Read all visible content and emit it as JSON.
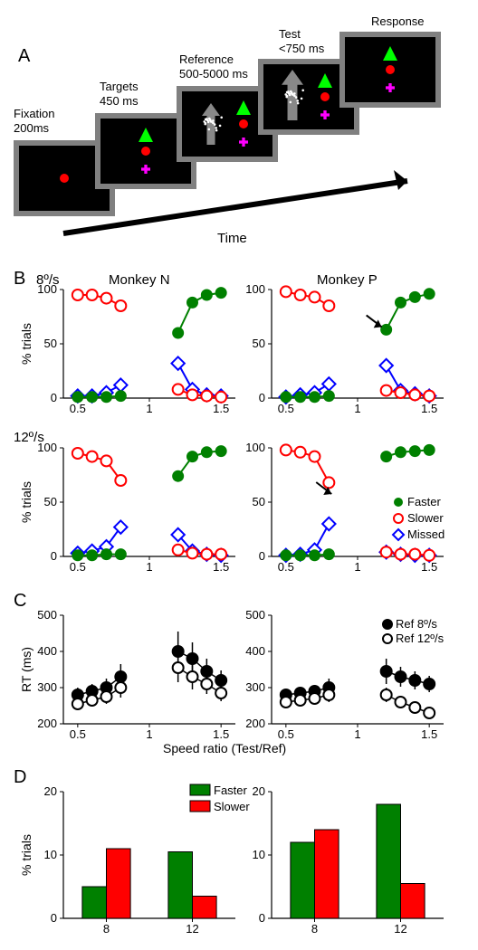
{
  "panelA": {
    "label": "A",
    "timeArrowLabel": "Time",
    "stages": [
      {
        "title": "Fixation",
        "subtitle": "200ms"
      },
      {
        "title": "Targets",
        "subtitle": "450 ms"
      },
      {
        "title": "Reference",
        "subtitle": "500-5000 ms"
      },
      {
        "title": "Test",
        "subtitle": "<750 ms"
      },
      {
        "title": "Response",
        "subtitle": ""
      }
    ],
    "colors": {
      "screenBorder": "#808080",
      "screenFill": "#000000",
      "fixationDot": "#ff0000",
      "triangle": "#00ff00",
      "cross": "#ff00ff",
      "arrow": "#a0a0a0",
      "dots": "#ffffff"
    }
  },
  "panelB": {
    "label": "B",
    "rowLabels": [
      "8º/s",
      "12º/s"
    ],
    "colLabels": [
      "Monkey N",
      "Monkey P"
    ],
    "xLabel": "",
    "yLabel": "% trials",
    "xlim": [
      0.4,
      1.6
    ],
    "ylim": [
      0,
      100
    ],
    "xticks": [
      0.5,
      1,
      1.5
    ],
    "yticks": [
      0,
      50,
      100
    ],
    "colors": {
      "faster": "#008000",
      "slower": "#ff0000",
      "missed": "#0000ff",
      "axis": "#000000"
    },
    "legend": [
      {
        "label": "Faster",
        "marker": "filled-circle",
        "color": "#008000"
      },
      {
        "label": "Slower",
        "marker": "open-circle",
        "color": "#ff0000"
      },
      {
        "label": "Missed",
        "marker": "open-diamond",
        "color": "#0000ff"
      }
    ],
    "markerSize": 6,
    "lineWidth": 2,
    "data": {
      "r0c0": {
        "faster_x": [
          0.5,
          0.6,
          0.7,
          0.8,
          1.2,
          1.3,
          1.4,
          1.5
        ],
        "faster_y": [
          1,
          1,
          1,
          2,
          60,
          88,
          95,
          97
        ],
        "slower_x": [
          0.5,
          0.6,
          0.7,
          0.8,
          1.2,
          1.3,
          1.4,
          1.5
        ],
        "slower_y": [
          95,
          95,
          92,
          85,
          8,
          3,
          2,
          1
        ],
        "missed_x": [
          0.5,
          0.6,
          0.7,
          0.8,
          1.2,
          1.3,
          1.4,
          1.5
        ],
        "missed_y": [
          2,
          2,
          5,
          12,
          32,
          8,
          3,
          2
        ]
      },
      "r0c1": {
        "faster_x": [
          0.5,
          0.6,
          0.7,
          0.8,
          1.2,
          1.3,
          1.4,
          1.5
        ],
        "faster_y": [
          1,
          1,
          1,
          2,
          63,
          88,
          93,
          96
        ],
        "slower_x": [
          0.5,
          0.6,
          0.7,
          0.8,
          1.2,
          1.3,
          1.4,
          1.5
        ],
        "slower_y": [
          98,
          95,
          93,
          85,
          7,
          5,
          3,
          2
        ],
        "missed_x": [
          0.5,
          0.6,
          0.7,
          0.8,
          1.2,
          1.3,
          1.4,
          1.5
        ],
        "missed_y": [
          1,
          3,
          5,
          13,
          30,
          7,
          4,
          2
        ],
        "arrow_at": [
          1.2,
          63
        ]
      },
      "r1c0": {
        "faster_x": [
          0.5,
          0.6,
          0.7,
          0.8,
          1.2,
          1.3,
          1.4,
          1.5
        ],
        "faster_y": [
          1,
          1,
          2,
          2,
          74,
          92,
          96,
          97
        ],
        "slower_x": [
          0.5,
          0.6,
          0.7,
          0.8,
          1.2,
          1.3,
          1.4,
          1.5
        ],
        "slower_y": [
          95,
          92,
          88,
          70,
          6,
          3,
          2,
          2
        ],
        "missed_x": [
          0.5,
          0.6,
          0.7,
          0.8,
          1.2,
          1.3,
          1.4,
          1.5
        ],
        "missed_y": [
          3,
          5,
          9,
          27,
          20,
          5,
          2,
          1
        ]
      },
      "r1c1": {
        "faster_x": [
          0.5,
          0.6,
          0.7,
          0.8,
          1.2,
          1.3,
          1.4,
          1.5
        ],
        "faster_y": [
          1,
          1,
          1,
          2,
          92,
          96,
          97,
          98
        ],
        "slower_x": [
          0.5,
          0.6,
          0.7,
          0.8,
          1.2,
          1.3,
          1.4,
          1.5
        ],
        "slower_y": [
          98,
          96,
          92,
          68,
          4,
          2,
          2,
          1
        ],
        "missed_x": [
          0.5,
          0.6,
          0.7,
          0.8,
          1.2,
          1.3,
          1.4,
          1.5
        ],
        "missed_y": [
          1,
          2,
          6,
          30,
          4,
          2,
          1,
          1
        ],
        "arrow_at": [
          0.85,
          55
        ]
      }
    }
  },
  "panelC": {
    "label": "C",
    "yLabel": "RT (ms)",
    "xLabel": "Speed ratio (Test/Ref)",
    "xlim": [
      0.4,
      1.6
    ],
    "ylim": [
      200,
      500
    ],
    "xticks": [
      0.5,
      1,
      1.5
    ],
    "yticks": [
      200,
      300,
      400,
      500
    ],
    "colors": {
      "ref8": "#000000",
      "ref12": "#000000",
      "axis": "#000000"
    },
    "legend": [
      {
        "label": "Ref 8º/s",
        "marker": "filled-circle",
        "color": "#000000"
      },
      {
        "label": "Ref 12º/s",
        "marker": "open-circle",
        "color": "#000000"
      }
    ],
    "markerSize": 6,
    "lineWidth": 1.5,
    "data": {
      "left": {
        "ref8_x": [
          0.5,
          0.6,
          0.7,
          0.8,
          1.2,
          1.3,
          1.4,
          1.5
        ],
        "ref8_y": [
          280,
          290,
          300,
          330,
          400,
          380,
          345,
          320
        ],
        "ref8_err": [
          40,
          40,
          50,
          70,
          110,
          90,
          70,
          55
        ],
        "ref12_x": [
          0.5,
          0.6,
          0.7,
          0.8,
          1.2,
          1.3,
          1.4,
          1.5
        ],
        "ref12_y": [
          255,
          265,
          275,
          300,
          355,
          330,
          310,
          285
        ],
        "ref12_err": [
          35,
          35,
          40,
          55,
          80,
          70,
          55,
          45
        ]
      },
      "right": {
        "ref8_x": [
          0.5,
          0.6,
          0.7,
          0.8,
          1.2,
          1.3,
          1.4,
          1.5
        ],
        "ref8_y": [
          280,
          285,
          290,
          300,
          345,
          330,
          320,
          310
        ],
        "ref8_err": [
          30,
          30,
          35,
          50,
          70,
          55,
          50,
          45
        ],
        "ref12_x": [
          0.5,
          0.6,
          0.7,
          0.8,
          1.2,
          1.3,
          1.4,
          1.5
        ],
        "ref12_y": [
          260,
          265,
          270,
          280,
          280,
          260,
          245,
          230
        ],
        "ref12_err": [
          25,
          25,
          30,
          40,
          40,
          35,
          30,
          25
        ]
      }
    }
  },
  "panelD": {
    "label": "D",
    "yLabel": "% trials",
    "xLabel": "",
    "ylim": [
      0,
      20
    ],
    "yticks": [
      0,
      10,
      20
    ],
    "categories": [
      "8",
      "12"
    ],
    "colors": {
      "faster": "#008000",
      "slower": "#ff0000",
      "axis": "#000000"
    },
    "barWidth": 0.35,
    "legend": [
      {
        "label": "Faster",
        "color": "#008000"
      },
      {
        "label": "Slower",
        "color": "#ff0000"
      }
    ],
    "data": {
      "left": {
        "faster": [
          5,
          10.5
        ],
        "slower": [
          11,
          3.5
        ]
      },
      "right": {
        "faster": [
          12,
          18
        ],
        "slower": [
          14,
          5.5
        ]
      }
    }
  }
}
